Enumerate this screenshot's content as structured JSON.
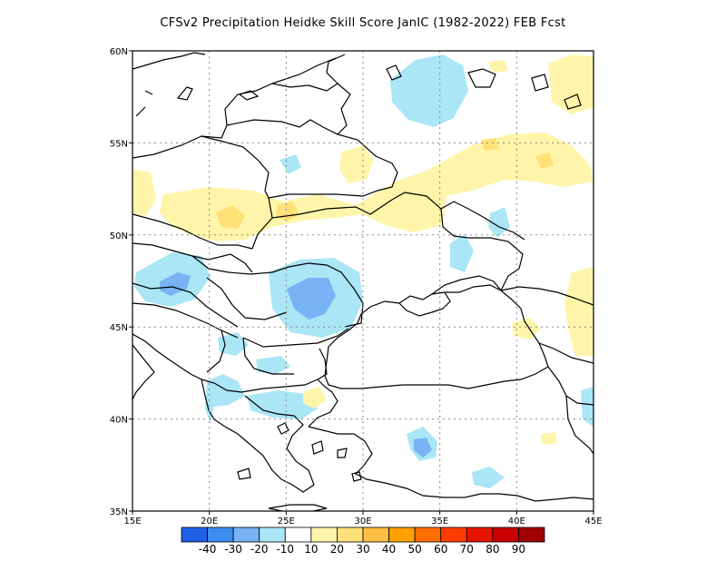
{
  "title": "CFSv2  Precipitation Heidke Skill Score JanIC (1982-2022) FEB Fcst",
  "map": {
    "lon_range": [
      15,
      45
    ],
    "lat_range": [
      35,
      60
    ],
    "lon_ticks": [
      {
        "value": 15,
        "label": "15E"
      },
      {
        "value": 20,
        "label": "20E"
      },
      {
        "value": 25,
        "label": "25E"
      },
      {
        "value": 30,
        "label": "30E"
      },
      {
        "value": 35,
        "label": "35E"
      },
      {
        "value": 40,
        "label": "40E"
      },
      {
        "value": 45,
        "label": "45E"
      }
    ],
    "lat_ticks": [
      {
        "value": 35,
        "label": "35N"
      },
      {
        "value": 40,
        "label": "40N"
      },
      {
        "value": 45,
        "label": "45N"
      },
      {
        "value": 50,
        "label": "50N"
      },
      {
        "value": 55,
        "label": "55N"
      },
      {
        "value": 60,
        "label": "60N"
      }
    ],
    "grid": "dotted"
  },
  "colorbar": {
    "labels": [
      "-40",
      "-30",
      "-20",
      "-10",
      "10",
      "20",
      "30",
      "40",
      "50",
      "60",
      "70",
      "80",
      "90"
    ],
    "colors": [
      "#1f5fe6",
      "#3c8cf0",
      "#78b4f5",
      "#aae6f5",
      "#ffffff",
      "#fff5aa",
      "#ffe178",
      "#ffbe46",
      "#ffa000",
      "#ff6e00",
      "#ff3c00",
      "#e61400",
      "#c80000",
      "#a00000"
    ]
  }
}
